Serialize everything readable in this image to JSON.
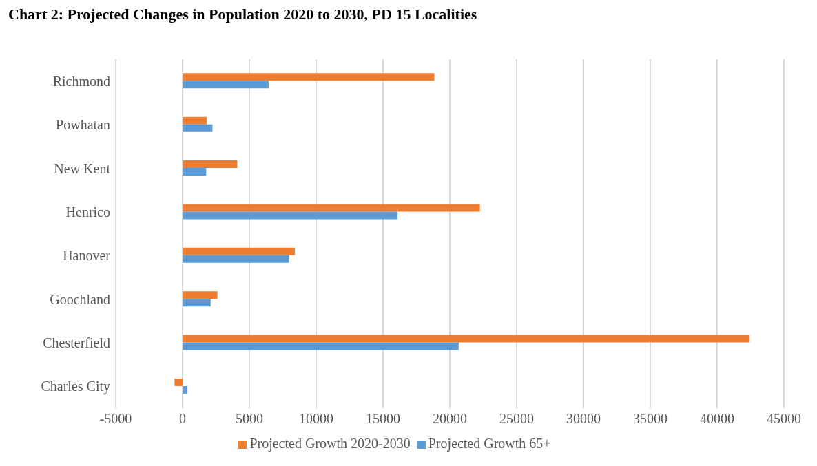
{
  "chart_data": {
    "type": "bar",
    "orientation": "horizontal",
    "title": "Chart 2: Projected Changes in Population 2020 to 2030, PD 15 Localities",
    "categories": [
      "Richmond",
      "Powhatan",
      "New Kent",
      "Henrico",
      "Hanover",
      "Goochland",
      "Chesterfield",
      "Charles City"
    ],
    "series": [
      {
        "name": "Projected Growth 2020-2030",
        "color": "#ed7d31",
        "values": [
          18840,
          1820,
          4100,
          22250,
          8400,
          2610,
          42440,
          -600
        ]
      },
      {
        "name": "Projected Growth 65+",
        "color": "#5b9bd5",
        "values": [
          6440,
          2240,
          1770,
          16090,
          7980,
          2100,
          20660,
          370
        ]
      }
    ],
    "xlim": [
      -5000,
      45000
    ],
    "xticks": [
      -5000,
      0,
      5000,
      10000,
      15000,
      20000,
      25000,
      30000,
      35000,
      40000,
      45000
    ],
    "grid": "x",
    "legend": "bottom"
  }
}
